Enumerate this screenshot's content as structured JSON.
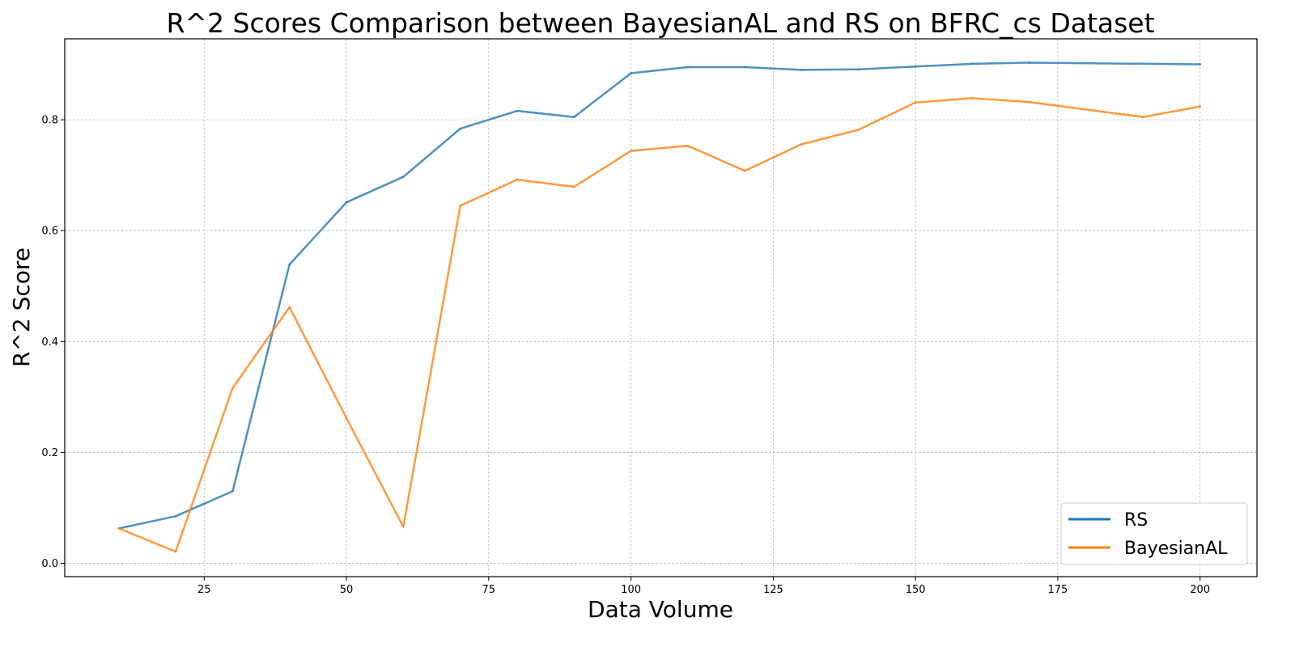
{
  "chart_data": {
    "type": "line",
    "title": "R^2 Scores Comparison between BayesianAL and RS on BFRC_cs Dataset",
    "xlabel": "Data Volume",
    "ylabel": "R^2 Score",
    "xlim": [
      0.5,
      210
    ],
    "ylim": [
      -0.024,
      0.946
    ],
    "xticks": [
      25,
      50,
      75,
      100,
      125,
      150,
      175,
      200
    ],
    "yticks": [
      0.0,
      0.2,
      0.4,
      0.6,
      0.8
    ],
    "xtick_labels": [
      "25",
      "50",
      "75",
      "100",
      "125",
      "150",
      "175",
      "200"
    ],
    "ytick_labels": [
      "0.0",
      "0.2",
      "0.4",
      "0.6",
      "0.8"
    ],
    "grid": true,
    "legend_position": "bottom-right",
    "series": [
      {
        "name": "RS",
        "color": "#1f77b4",
        "x": [
          10,
          20,
          30,
          40,
          50,
          60,
          70,
          80,
          90,
          100,
          110,
          120,
          130,
          140,
          150,
          160,
          170,
          200
        ],
        "y": [
          0.063,
          0.085,
          0.13,
          0.539,
          0.651,
          0.697,
          0.784,
          0.816,
          0.805,
          0.884,
          0.895,
          0.895,
          0.89,
          0.891,
          0.896,
          0.901,
          0.903,
          0.9
        ]
      },
      {
        "name": "BayesianAL",
        "color": "#ff7f0e",
        "x": [
          10,
          20,
          30,
          40,
          50,
          60,
          70,
          80,
          90,
          100,
          110,
          120,
          130,
          140,
          150,
          160,
          170,
          190,
          200
        ],
        "y": [
          0.063,
          0.021,
          0.316,
          0.462,
          0.262,
          0.066,
          0.645,
          0.692,
          0.679,
          0.744,
          0.753,
          0.708,
          0.756,
          0.782,
          0.831,
          0.839,
          0.832,
          0.805,
          0.824
        ]
      }
    ]
  }
}
